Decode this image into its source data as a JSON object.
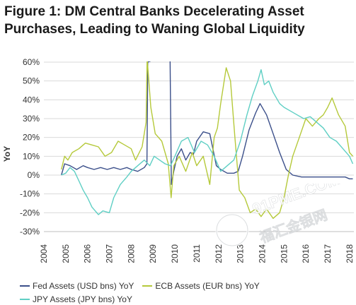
{
  "title": "Figure 1: DM Central Banks Decelerating Asset Purchases, Leading to Waning Global Liquidity",
  "watermark": {
    "line1": "91PME.COM",
    "line2": "福汇金银网"
  },
  "chart_data": {
    "type": "line",
    "ylabel": "YoY",
    "ylim": [
      -30,
      60
    ],
    "xlim": [
      2004,
      2018.2
    ],
    "yticks": [
      -30,
      -20,
      -10,
      0,
      10,
      20,
      30,
      40,
      50,
      60
    ],
    "ytick_labels": [
      "-30%",
      "-20%",
      "-10%",
      "0%",
      "10%",
      "20%",
      "30%",
      "40%",
      "50%",
      "60%"
    ],
    "xticks": [
      2004,
      2005,
      2006,
      2007,
      2008,
      2009,
      2010,
      2011,
      2012,
      2013,
      2014,
      2015,
      2016,
      2017,
      2018
    ],
    "xtick_labels": [
      "2004",
      "2005",
      "2006",
      "2007",
      "2008",
      "2009",
      "2010",
      "2011",
      "2012",
      "2013",
      "2014",
      "2015",
      "2016",
      "2017",
      "2018"
    ],
    "grid": "horizontal",
    "legend_position": "bottom",
    "series": [
      {
        "name": "Fed Assets (USD bns) YoY",
        "color": "#3b4f8a",
        "points": [
          [
            2004.8,
            0
          ],
          [
            2004.95,
            6
          ],
          [
            2005.2,
            5
          ],
          [
            2005.5,
            3
          ],
          [
            2005.8,
            5
          ],
          [
            2006.0,
            4
          ],
          [
            2006.3,
            3
          ],
          [
            2006.6,
            4
          ],
          [
            2006.9,
            3
          ],
          [
            2007.2,
            4
          ],
          [
            2007.5,
            3
          ],
          [
            2007.8,
            4
          ],
          [
            2008.0,
            3
          ],
          [
            2008.3,
            2
          ],
          [
            2008.6,
            4
          ],
          [
            2008.72,
            6
          ],
          [
            2008.76,
            60
          ],
          [
            2009.2,
            62
          ],
          [
            2009.78,
            62
          ],
          [
            2009.84,
            -5
          ],
          [
            2009.95,
            2
          ],
          [
            2010.1,
            10
          ],
          [
            2010.3,
            14
          ],
          [
            2010.5,
            8
          ],
          [
            2010.7,
            12
          ],
          [
            2010.85,
            11
          ],
          [
            2011.0,
            18
          ],
          [
            2011.3,
            23
          ],
          [
            2011.6,
            22
          ],
          [
            2011.9,
            5
          ],
          [
            2012.1,
            3
          ],
          [
            2012.4,
            1
          ],
          [
            2012.7,
            1
          ],
          [
            2012.9,
            2
          ],
          [
            2013.1,
            10
          ],
          [
            2013.4,
            24
          ],
          [
            2013.7,
            33
          ],
          [
            2013.9,
            38
          ],
          [
            2014.2,
            32
          ],
          [
            2014.5,
            22
          ],
          [
            2014.8,
            12
          ],
          [
            2015.1,
            3
          ],
          [
            2015.4,
            0
          ],
          [
            2015.8,
            -1
          ],
          [
            2016.2,
            -1
          ],
          [
            2016.6,
            -1
          ],
          [
            2017.0,
            -1
          ],
          [
            2017.4,
            -1
          ],
          [
            2017.8,
            -1
          ],
          [
            2018.0,
            -2
          ],
          [
            2018.15,
            -2
          ]
        ]
      },
      {
        "name": "ECB Assets (EUR bns) YoY",
        "color": "#b5c93a",
        "points": [
          [
            2004.8,
            3
          ],
          [
            2004.95,
            10
          ],
          [
            2005.1,
            8
          ],
          [
            2005.3,
            12
          ],
          [
            2005.6,
            14
          ],
          [
            2005.9,
            17
          ],
          [
            2006.2,
            16
          ],
          [
            2006.5,
            15
          ],
          [
            2006.8,
            10
          ],
          [
            2007.1,
            12
          ],
          [
            2007.4,
            18
          ],
          [
            2007.7,
            16
          ],
          [
            2008.0,
            14
          ],
          [
            2008.2,
            8
          ],
          [
            2008.5,
            15
          ],
          [
            2008.68,
            28
          ],
          [
            2008.73,
            62
          ],
          [
            2008.9,
            36
          ],
          [
            2009.1,
            22
          ],
          [
            2009.4,
            18
          ],
          [
            2009.7,
            6
          ],
          [
            2009.83,
            -12
          ],
          [
            2009.95,
            5
          ],
          [
            2010.2,
            10
          ],
          [
            2010.5,
            2
          ],
          [
            2010.8,
            12
          ],
          [
            2011.0,
            5
          ],
          [
            2011.3,
            10
          ],
          [
            2011.6,
            -5
          ],
          [
            2011.8,
            20
          ],
          [
            2011.95,
            25
          ],
          [
            2012.1,
            38
          ],
          [
            2012.35,
            57
          ],
          [
            2012.55,
            50
          ],
          [
            2012.75,
            20
          ],
          [
            2012.95,
            -8
          ],
          [
            2013.2,
            -12
          ],
          [
            2013.45,
            -20
          ],
          [
            2013.7,
            -18
          ],
          [
            2013.95,
            -22
          ],
          [
            2014.2,
            -18
          ],
          [
            2014.5,
            -23
          ],
          [
            2014.8,
            -20
          ],
          [
            2015.0,
            -12
          ],
          [
            2015.2,
            0
          ],
          [
            2015.4,
            10
          ],
          [
            2015.7,
            20
          ],
          [
            2016.0,
            30
          ],
          [
            2016.3,
            26
          ],
          [
            2016.6,
            30
          ],
          [
            2016.8,
            32
          ],
          [
            2017.0,
            36
          ],
          [
            2017.2,
            41
          ],
          [
            2017.5,
            32
          ],
          [
            2017.8,
            26
          ],
          [
            2018.0,
            12
          ],
          [
            2018.15,
            10
          ]
        ]
      },
      {
        "name": "JPY Assets (JPY bns) YoY",
        "color": "#5fcfc4",
        "points": [
          [
            2004.8,
            0
          ],
          [
            2005.0,
            1
          ],
          [
            2005.2,
            4
          ],
          [
            2005.4,
            2
          ],
          [
            2005.6,
            -3
          ],
          [
            2005.8,
            -8
          ],
          [
            2006.0,
            -12
          ],
          [
            2006.2,
            -17
          ],
          [
            2006.5,
            -21
          ],
          [
            2006.7,
            -19
          ],
          [
            2007.0,
            -20
          ],
          [
            2007.2,
            -12
          ],
          [
            2007.5,
            -5
          ],
          [
            2007.8,
            -1
          ],
          [
            2008.0,
            2
          ],
          [
            2008.3,
            5
          ],
          [
            2008.6,
            8
          ],
          [
            2008.85,
            5
          ],
          [
            2009.05,
            10
          ],
          [
            2009.3,
            8
          ],
          [
            2009.55,
            6
          ],
          [
            2009.8,
            5
          ],
          [
            2010.0,
            10
          ],
          [
            2010.3,
            18
          ],
          [
            2010.6,
            20
          ],
          [
            2010.9,
            12
          ],
          [
            2011.2,
            18
          ],
          [
            2011.5,
            16
          ],
          [
            2011.8,
            10
          ],
          [
            2012.1,
            2
          ],
          [
            2012.4,
            5
          ],
          [
            2012.7,
            8
          ],
          [
            2013.0,
            18
          ],
          [
            2013.3,
            32
          ],
          [
            2013.55,
            42
          ],
          [
            2013.8,
            50
          ],
          [
            2013.95,
            56
          ],
          [
            2014.1,
            48
          ],
          [
            2014.3,
            50
          ],
          [
            2014.5,
            44
          ],
          [
            2014.8,
            38
          ],
          [
            2015.0,
            36
          ],
          [
            2015.3,
            34
          ],
          [
            2015.6,
            32
          ],
          [
            2015.9,
            30
          ],
          [
            2016.2,
            31
          ],
          [
            2016.5,
            28
          ],
          [
            2016.8,
            25
          ],
          [
            2017.1,
            20
          ],
          [
            2017.4,
            18
          ],
          [
            2017.7,
            14
          ],
          [
            2018.0,
            10
          ],
          [
            2018.15,
            6
          ]
        ]
      }
    ]
  }
}
